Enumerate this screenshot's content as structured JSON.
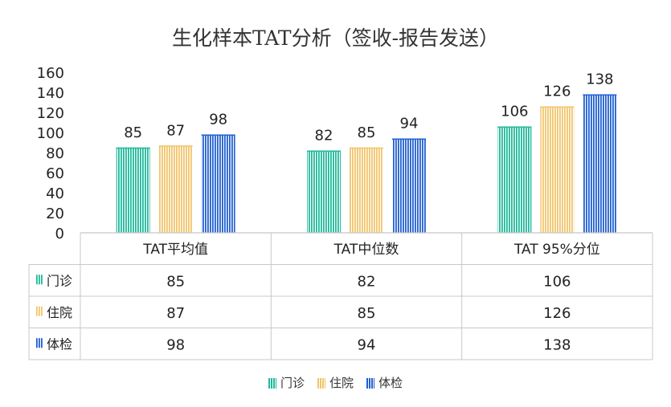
{
  "chart_data": {
    "type": "bar",
    "title": "生化样本TAT分析（签收-报告发送）",
    "categories": [
      "TAT平均值",
      "TAT中位数",
      "TAT 95%分位"
    ],
    "series": [
      {
        "name": "门诊",
        "values": [
          85,
          82,
          106
        ],
        "color": "#1fb89a"
      },
      {
        "name": "住院",
        "values": [
          87,
          85,
          126
        ],
        "color": "#f2c46a"
      },
      {
        "name": "体检",
        "values": [
          98,
          94,
          138
        ],
        "color": "#1f5fd1"
      }
    ],
    "ylim": [
      0,
      160
    ],
    "yticks": [
      0,
      20,
      40,
      60,
      80,
      100,
      120,
      140,
      160
    ],
    "legend_position": "bottom",
    "data_table": true,
    "grid": false
  }
}
